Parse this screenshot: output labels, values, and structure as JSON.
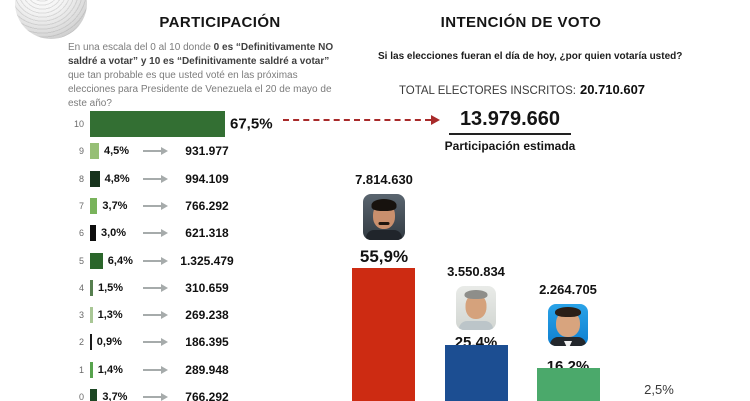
{
  "participation": {
    "title": "PARTICIPACIÓN",
    "question_segments": [
      "En una escala del 0 al 10 donde ",
      "0 es “Definitivamente NO saldré a votar” y 10 es “Definitivamente saldré a votar”",
      " que tan probable es que usted voté en las próximas elecciones para Presidente de Venezuela el 20 de mayo  de este año?"
    ],
    "estimated_value": "13.979.660",
    "estimated_label": "Participación estimada",
    "rows": [
      {
        "scale": "10",
        "pct": "67,5%",
        "pct_value": 67.5,
        "value": "",
        "color": "#336f33"
      },
      {
        "scale": "9",
        "pct": "4,5%",
        "pct_value": 4.5,
        "value": "931.977",
        "color": "#96bf75"
      },
      {
        "scale": "8",
        "pct": "4,8%",
        "pct_value": 4.8,
        "value": "994.109",
        "color": "#17331c"
      },
      {
        "scale": "7",
        "pct": "3,7%",
        "pct_value": 3.7,
        "value": "766.292",
        "color": "#79b35b"
      },
      {
        "scale": "6",
        "pct": "3,0%",
        "pct_value": 3.0,
        "value": "621.318",
        "color": "#0d0d0d"
      },
      {
        "scale": "5",
        "pct": "6,4%",
        "pct_value": 6.4,
        "value": "1.325.479",
        "color": "#2b662b"
      },
      {
        "scale": "4",
        "pct": "1,5%",
        "pct_value": 1.5,
        "value": "310.659",
        "color": "#567f4f"
      },
      {
        "scale": "3",
        "pct": "1,3%",
        "pct_value": 1.3,
        "value": "269.238",
        "color": "#a9c796"
      },
      {
        "scale": "2",
        "pct": "0,9%",
        "pct_value": 0.9,
        "value": "186.395",
        "color": "#1a1a1a"
      },
      {
        "scale": "1",
        "pct": "1,4%",
        "pct_value": 1.4,
        "value": "289.948",
        "color": "#57a34d"
      },
      {
        "scale": "0",
        "pct": "3,7%",
        "pct_value": 3.7,
        "value": "766.292",
        "color": "#1d4724"
      }
    ]
  },
  "vote": {
    "title": "INTENCIÓN DE VOTO",
    "question": "Si las elecciones fueran el día de hoy, ¿por quien votaría usted?",
    "total_label": "TOTAL ELECTORES INSCRITOS:",
    "total_value": "20.710.607",
    "candidates": [
      {
        "photo": "nicolas-maduro",
        "value": "7.814.630",
        "pct": "55,9%",
        "pct_value": 55.9,
        "color": "#cd2b12"
      },
      {
        "photo": "henri-falcon",
        "value": "3.550.834",
        "pct": "25,4%",
        "pct_value": 25.4,
        "color": "#1c4e92"
      },
      {
        "photo": "javier-bertucci",
        "value": "2.264.705",
        "pct": "16,2%",
        "pct_value": 16.2,
        "color": "#4ba96b"
      },
      {
        "photo": "",
        "value": "",
        "pct": "2,5%",
        "pct_value": 2.5,
        "color": ""
      }
    ]
  },
  "chart_data": [
    {
      "type": "bar",
      "orientation": "horizontal",
      "title": "PARTICIPACIÓN",
      "question": "En una escala del 0 al 10 donde 0 es “Definitivamente NO saldré a votar” y 10 es “Definitivamente saldré a votar” que tan probable es que usted voté en las próximas elecciones para Presidente de Venezuela el 20 de mayo de este año?",
      "categories": [
        "10",
        "9",
        "8",
        "7",
        "6",
        "5",
        "4",
        "3",
        "2",
        "1",
        "0"
      ],
      "values": [
        67.5,
        4.5,
        4.8,
        3.7,
        3.0,
        6.4,
        1.5,
        1.3,
        0.9,
        1.4,
        3.7
      ],
      "voters": [
        13979660,
        931977,
        994109,
        766292,
        621318,
        1325479,
        310659,
        269238,
        186395,
        289948,
        766292
      ],
      "estimated_participation": 13979660,
      "estimated_participation_label": "Participación estimada",
      "xlim": [
        0,
        70
      ],
      "grid": false,
      "legend": false
    },
    {
      "type": "bar",
      "orientation": "vertical",
      "title": "INTENCIÓN DE VOTO",
      "question": "Si las elecciones fueran el día de hoy, ¿por quien votaría usted?",
      "total_electores_inscritos": 20710607,
      "categories": [
        "Nicolás Maduro (photo)",
        "Henri Falcón (photo)",
        "Javier Bertucci (photo)",
        "(cortado)"
      ],
      "values": [
        55.9,
        25.4,
        16.2,
        2.5
      ],
      "voters": [
        7814630,
        3550834,
        2264705,
        null
      ],
      "colors": [
        "#cd2b12",
        "#1c4e92",
        "#4ba96b",
        null
      ],
      "ylim": [
        0,
        60
      ],
      "grid": false,
      "legend": false
    }
  ]
}
